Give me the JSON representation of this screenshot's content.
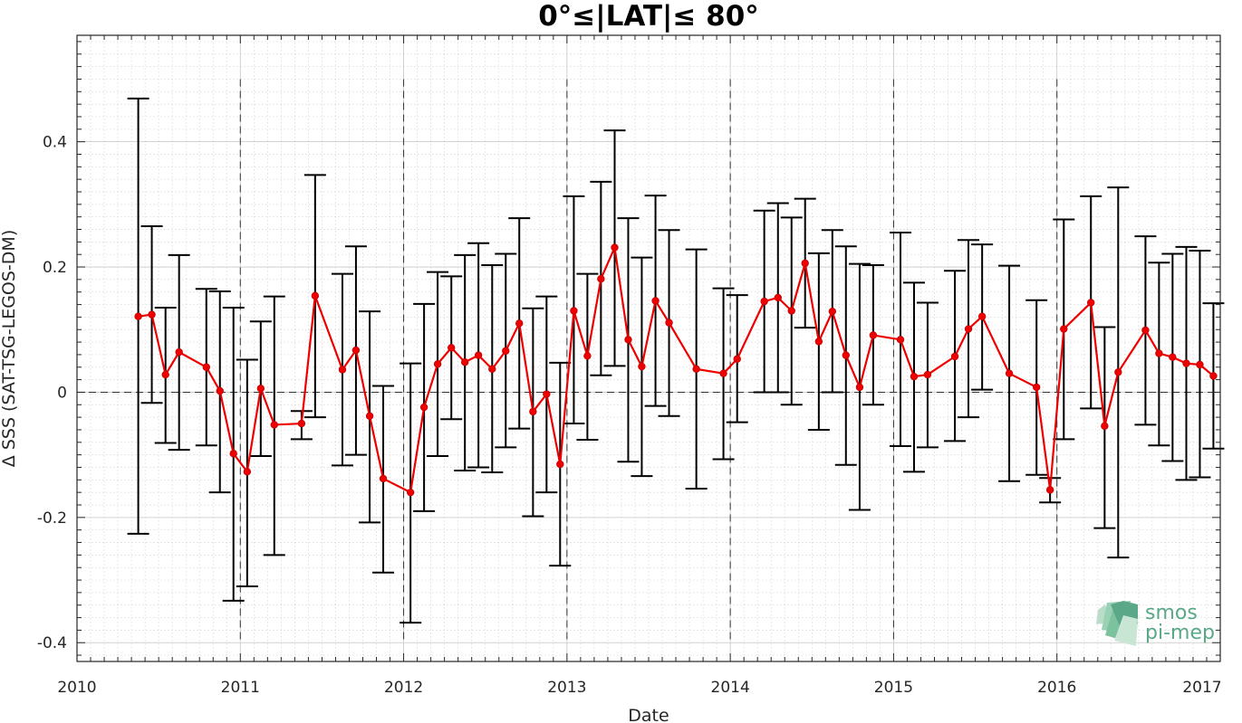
{
  "chart_data": {
    "type": "line",
    "title": "0°≤|LAT|≤ 80°",
    "xlabel": "Date",
    "ylabel": "Δ SSS (SAT-TSG-LEGOS-DM)",
    "xlim": [
      2010,
      2017
    ],
    "ylim": [
      -0.43,
      0.57
    ],
    "x_ticks": [
      "2010",
      "2011",
      "2012",
      "2013",
      "2014",
      "2015",
      "2016",
      "2017"
    ],
    "y_ticks": [
      "-0.4",
      "-0.2",
      "0",
      "0.2",
      "0.4"
    ],
    "y_tick_values": [
      -0.4,
      -0.2,
      0,
      0.2,
      0.4
    ],
    "grid": true,
    "minor_grid": true,
    "zero_line": 0,
    "year_lines": [
      2011,
      2012,
      2013,
      2014,
      2015,
      2016
    ],
    "series": [
      {
        "color": "#ee0000",
        "x": [
          2010.375,
          2010.458,
          2010.542,
          2010.625,
          2010.792,
          2010.875,
          2010.958,
          2011.042,
          2011.125,
          2011.208,
          2011.375,
          2011.458,
          2011.625,
          2011.708,
          2011.792,
          2011.875,
          2012.042,
          2012.125,
          2012.208,
          2012.292,
          2012.375,
          2012.458,
          2012.542,
          2012.625,
          2012.708,
          2012.792,
          2012.875,
          2012.958,
          2013.042,
          2013.125,
          2013.208,
          2013.292,
          2013.375,
          2013.458,
          2013.542,
          2013.625,
          2013.792,
          2013.958,
          2014.042,
          2014.208,
          2014.292,
          2014.375,
          2014.458,
          2014.542,
          2014.625,
          2014.708,
          2014.792,
          2014.875,
          2015.042,
          2015.125,
          2015.208,
          2015.375,
          2015.458,
          2015.542,
          2015.708,
          2015.875,
          2015.958,
          2016.042,
          2016.208,
          2016.292,
          2016.375,
          2016.542,
          2016.625,
          2016.708,
          2016.792,
          2016.875,
          2016.958
        ],
        "y": [
          0.121,
          0.124,
          0.028,
          0.064,
          0.04,
          0.002,
          -0.098,
          -0.127,
          0.006,
          -0.052,
          -0.05,
          0.154,
          0.036,
          0.067,
          -0.038,
          -0.138,
          -0.16,
          -0.024,
          0.045,
          0.071,
          0.048,
          0.059,
          0.037,
          0.066,
          0.11,
          -0.031,
          -0.003,
          -0.115,
          0.13,
          0.058,
          0.181,
          0.231,
          0.084,
          0.041,
          0.146,
          0.111,
          0.037,
          0.03,
          0.053,
          0.145,
          0.151,
          0.13,
          0.206,
          0.081,
          0.129,
          0.059,
          0.008,
          0.091,
          0.084,
          0.025,
          0.028,
          0.057,
          0.101,
          0.121,
          0.03,
          0.008,
          -0.156,
          0.101,
          0.143,
          -0.054,
          0.032,
          0.099,
          0.062,
          0.056,
          0.046,
          0.044,
          0.026
        ],
        "err_low": [
          -0.226,
          -0.017,
          -0.081,
          -0.092,
          -0.085,
          -0.16,
          -0.333,
          -0.31,
          -0.102,
          -0.26,
          -0.075,
          -0.04,
          -0.117,
          -0.1,
          -0.208,
          -0.288,
          -0.368,
          -0.19,
          -0.102,
          -0.043,
          -0.125,
          -0.12,
          -0.128,
          -0.088,
          -0.058,
          -0.198,
          -0.16,
          -0.277,
          -0.05,
          -0.076,
          0.027,
          0.042,
          -0.111,
          -0.134,
          -0.022,
          -0.038,
          -0.154,
          -0.107,
          -0.048,
          0.0,
          0.0,
          -0.02,
          0.103,
          -0.06,
          0.0,
          -0.116,
          -0.188,
          -0.02,
          -0.086,
          -0.127,
          -0.088,
          -0.078,
          -0.04,
          0.004,
          -0.142,
          -0.132,
          -0.176,
          -0.075,
          -0.026,
          -0.217,
          -0.264,
          -0.052,
          -0.085,
          -0.11,
          -0.14,
          -0.136,
          -0.09
        ],
        "err_high": [
          0.469,
          0.265,
          0.135,
          0.219,
          0.165,
          0.161,
          0.135,
          0.052,
          0.113,
          0.153,
          -0.03,
          0.347,
          0.189,
          0.233,
          0.129,
          0.01,
          0.046,
          0.141,
          0.192,
          0.185,
          0.219,
          0.238,
          0.203,
          0.221,
          0.278,
          0.134,
          0.153,
          0.047,
          0.313,
          0.189,
          0.336,
          0.418,
          0.278,
          0.215,
          0.314,
          0.259,
          0.228,
          0.166,
          0.155,
          0.29,
          0.302,
          0.279,
          0.309,
          0.222,
          0.259,
          0.233,
          0.205,
          0.203,
          0.255,
          0.175,
          0.143,
          0.194,
          0.243,
          0.236,
          0.202,
          0.147,
          -0.137,
          0.276,
          0.313,
          0.104,
          0.327,
          0.249,
          0.207,
          0.221,
          0.232,
          0.226,
          0.142
        ]
      }
    ]
  },
  "logo": {
    "line1": "smos",
    "line2": "pi-mep",
    "color": "#5aa887"
  }
}
